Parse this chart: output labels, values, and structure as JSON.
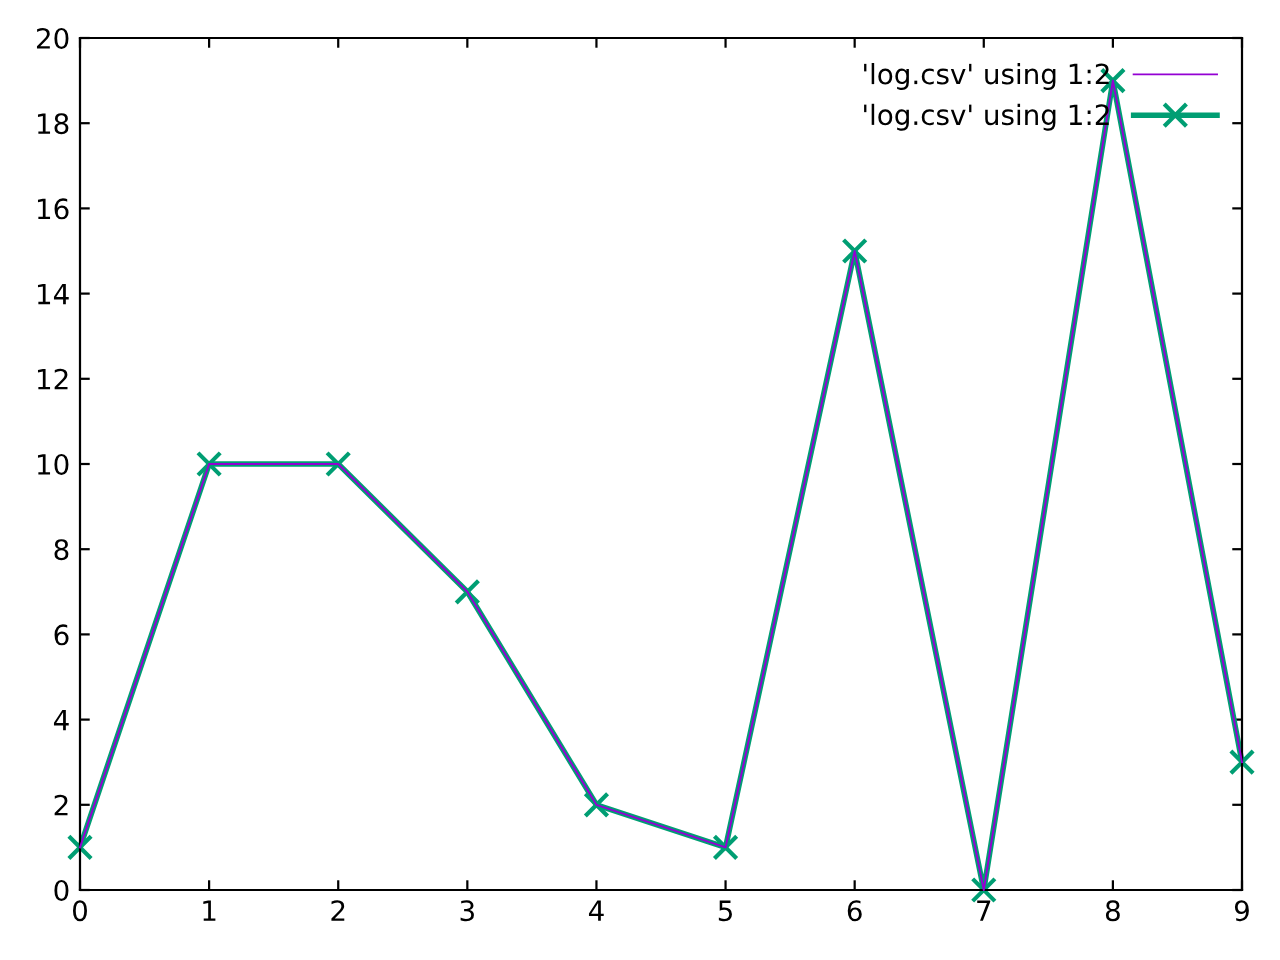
{
  "chart_data": {
    "type": "line",
    "x": [
      0,
      1,
      2,
      3,
      4,
      5,
      6,
      7,
      8,
      9
    ],
    "series": [
      {
        "name": "'log.csv' using 1:2",
        "color": "#9400d3",
        "values": [
          1,
          10,
          10,
          7,
          2,
          1,
          15,
          0,
          19,
          3
        ],
        "marker": "none"
      },
      {
        "name": "'log.csv' using 1:2",
        "color": "#009e73",
        "values": [
          1,
          10,
          10,
          7,
          2,
          1,
          15,
          0,
          19,
          3
        ],
        "marker": "cross"
      }
    ],
    "xlim": [
      0,
      9
    ],
    "xticks": [
      0,
      1,
      2,
      3,
      4,
      5,
      6,
      7,
      8,
      9
    ],
    "ylim": [
      0,
      20
    ],
    "yticks": [
      0,
      2,
      4,
      6,
      8,
      10,
      12,
      14,
      16,
      18,
      20
    ],
    "grid": false,
    "legend": "top right"
  }
}
